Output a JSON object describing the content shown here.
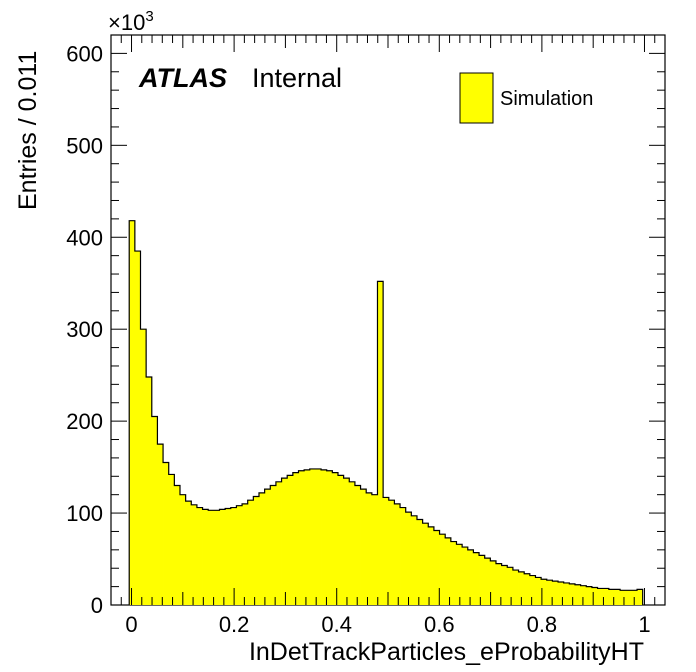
{
  "chart_data": {
    "type": "histogram",
    "xlabel": "InDetTrackParticles_eProbabilityHT",
    "ylabel": "Entries / 0.011",
    "y_multiplier_label": "×10",
    "y_multiplier_exp": "3",
    "label_bold": "ATLAS",
    "label_normal": "Internal",
    "legend": {
      "label": "Simulation",
      "placement": "top-right",
      "color": "#ffff00"
    },
    "fill_color": "#ffff00",
    "line_color": "#000000",
    "xlim": [
      -0.04,
      1.04
    ],
    "ylim": [
      0,
      620
    ],
    "x_ticks": [
      0,
      0.2,
      0.4,
      0.6,
      0.8,
      1
    ],
    "x_tick_labels": [
      "0",
      "0.2",
      "0.4",
      "0.6",
      "0.8",
      "1"
    ],
    "y_ticks": [
      0,
      100,
      200,
      300,
      400,
      500,
      600
    ],
    "y_tick_labels": [
      "0",
      "100",
      "200",
      "300",
      "400",
      "500",
      "600"
    ],
    "bin_start": -0.0045,
    "bin_width": 0.011,
    "values": [
      418,
      385,
      300,
      248,
      205,
      175,
      155,
      142,
      130,
      120,
      113,
      109,
      106,
      104,
      103,
      103,
      104,
      105,
      106,
      108,
      110,
      114,
      118,
      122,
      126,
      130,
      134,
      138,
      141,
      144,
      146,
      147,
      148,
      148,
      147,
      146,
      144,
      141,
      138,
      134,
      130,
      126,
      122,
      120,
      352,
      117,
      114,
      110,
      106,
      101,
      97,
      93,
      89,
      85,
      81,
      77,
      73,
      69,
      66,
      63,
      60,
      57,
      54,
      51,
      48,
      45,
      43,
      41,
      38,
      36,
      34,
      32,
      30,
      28,
      27,
      26,
      25,
      24,
      23,
      22,
      21,
      20,
      19,
      18,
      18,
      17,
      17,
      16,
      16,
      16,
      17
    ]
  }
}
